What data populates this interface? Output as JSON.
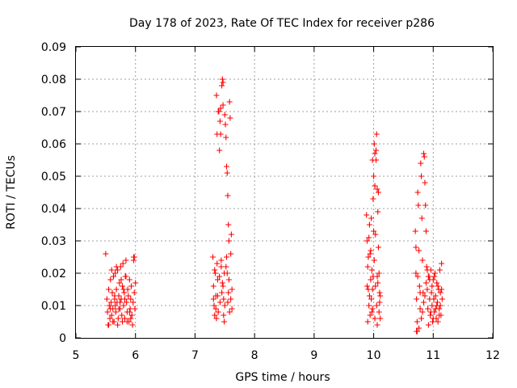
{
  "chart_data": {
    "type": "scatter",
    "title": "Day 178 of 2023, Rate Of TEC Index for receiver p286",
    "xlabel": "GPS time / hours",
    "ylabel": "ROTI / TECUs",
    "xlim": [
      5,
      12
    ],
    "ylim": [
      0,
      0.09
    ],
    "x_ticks": [
      "5",
      "6",
      "7",
      "8",
      "9",
      "10",
      "11",
      "12"
    ],
    "y_ticks": [
      "0",
      "0.01",
      "0.02",
      "0.03",
      "0.04",
      "0.05",
      "0.06",
      "0.07",
      "0.08",
      "0.09"
    ],
    "grid": true,
    "marker": "plus",
    "color": "#ff0000",
    "series": [
      {
        "name": "ROTI",
        "points": [
          [
            5.5,
            0.026
          ],
          [
            5.52,
            0.012
          ],
          [
            5.53,
            0.008
          ],
          [
            5.54,
            0.004
          ],
          [
            5.55,
            0.015
          ],
          [
            5.56,
            0.01
          ],
          [
            5.57,
            0.006
          ],
          [
            5.58,
            0.018
          ],
          [
            5.59,
            0.011
          ],
          [
            5.6,
            0.007
          ],
          [
            5.61,
            0.014
          ],
          [
            5.62,
            0.009
          ],
          [
            5.63,
            0.019
          ],
          [
            5.64,
            0.005
          ],
          [
            5.65,
            0.012
          ],
          [
            5.66,
            0.02
          ],
          [
            5.67,
            0.008
          ],
          [
            5.68,
            0.015
          ],
          [
            5.69,
            0.011
          ],
          [
            5.7,
            0.021
          ],
          [
            5.71,
            0.006
          ],
          [
            5.72,
            0.013
          ],
          [
            5.73,
            0.017
          ],
          [
            5.74,
            0.009
          ],
          [
            5.75,
            0.022
          ],
          [
            5.76,
            0.012
          ],
          [
            5.77,
            0.007
          ],
          [
            5.78,
            0.016
          ],
          [
            5.79,
            0.023
          ],
          [
            5.8,
            0.01
          ],
          [
            5.81,
            0.014
          ],
          [
            5.82,
            0.006
          ],
          [
            5.83,
            0.019
          ],
          [
            5.84,
            0.024
          ],
          [
            5.85,
            0.011
          ],
          [
            5.86,
            0.008
          ],
          [
            5.87,
            0.015
          ],
          [
            5.88,
            0.013
          ],
          [
            5.89,
            0.005
          ],
          [
            5.9,
            0.018
          ],
          [
            5.91,
            0.009
          ],
          [
            5.92,
            0.012
          ],
          [
            5.93,
            0.016
          ],
          [
            5.94,
            0.007
          ],
          [
            5.95,
            0.004
          ],
          [
            5.96,
            0.011
          ],
          [
            5.97,
            0.025
          ],
          [
            5.98,
            0.014
          ],
          [
            5.99,
            0.009
          ],
          [
            6.0,
            0.017
          ],
          [
            5.55,
            0.004
          ],
          [
            5.58,
            0.009
          ],
          [
            5.62,
            0.005
          ],
          [
            5.66,
            0.01
          ],
          [
            5.7,
            0.004
          ],
          [
            5.74,
            0.011
          ],
          [
            5.78,
            0.005
          ],
          [
            5.82,
            0.012
          ],
          [
            5.86,
            0.005
          ],
          [
            5.9,
            0.008
          ],
          [
            5.6,
            0.021
          ],
          [
            5.68,
            0.022
          ],
          [
            5.76,
            0.018
          ],
          [
            5.84,
            0.019
          ],
          [
            5.92,
            0.006
          ],
          [
            5.97,
            0.024
          ],
          [
            5.98,
            0.025
          ],
          [
            5.65,
            0.013
          ],
          [
            5.72,
            0.009
          ],
          [
            5.8,
            0.015
          ],
          [
            7.3,
            0.025
          ],
          [
            7.31,
            0.016
          ],
          [
            7.32,
            0.01
          ],
          [
            7.33,
            0.007
          ],
          [
            7.34,
            0.02
          ],
          [
            7.35,
            0.013
          ],
          [
            7.36,
            0.075
          ],
          [
            7.37,
            0.063
          ],
          [
            7.38,
            0.018
          ],
          [
            7.39,
            0.008
          ],
          [
            7.4,
            0.07
          ],
          [
            7.41,
            0.058
          ],
          [
            7.42,
            0.067
          ],
          [
            7.43,
            0.063
          ],
          [
            7.44,
            0.022
          ],
          [
            7.45,
            0.078
          ],
          [
            7.46,
            0.08
          ],
          [
            7.47,
            0.079
          ],
          [
            7.48,
            0.012
          ],
          [
            7.49,
            0.005
          ],
          [
            7.5,
            0.069
          ],
          [
            7.51,
            0.066
          ],
          [
            7.52,
            0.062
          ],
          [
            7.53,
            0.053
          ],
          [
            7.54,
            0.051
          ],
          [
            7.55,
            0.044
          ],
          [
            7.56,
            0.035
          ],
          [
            7.57,
            0.03
          ],
          [
            7.58,
            0.073
          ],
          [
            7.59,
            0.068
          ],
          [
            7.6,
            0.026
          ],
          [
            7.61,
            0.032
          ],
          [
            7.62,
            0.015
          ],
          [
            7.35,
            0.009
          ],
          [
            7.38,
            0.013
          ],
          [
            7.42,
            0.011
          ],
          [
            7.46,
            0.017
          ],
          [
            7.5,
            0.01
          ],
          [
            7.54,
            0.02
          ],
          [
            7.58,
            0.008
          ],
          [
            7.33,
            0.021
          ],
          [
            7.37,
            0.023
          ],
          [
            7.41,
            0.019
          ],
          [
            7.44,
            0.024
          ],
          [
            7.47,
            0.016
          ],
          [
            7.52,
            0.022
          ],
          [
            7.56,
            0.014
          ],
          [
            7.6,
            0.012
          ],
          [
            7.36,
            0.006
          ],
          [
            7.48,
            0.007
          ],
          [
            7.43,
            0.071
          ],
          [
            7.47,
            0.072
          ],
          [
            7.39,
            0.07
          ],
          [
            7.62,
            0.009
          ],
          [
            7.53,
            0.025
          ],
          [
            7.57,
            0.018
          ],
          [
            7.49,
            0.02
          ],
          [
            7.45,
            0.014
          ],
          [
            7.31,
            0.012
          ],
          [
            7.55,
            0.011
          ],
          [
            9.88,
            0.038
          ],
          [
            9.89,
            0.03
          ],
          [
            9.9,
            0.022
          ],
          [
            9.91,
            0.015
          ],
          [
            9.92,
            0.01
          ],
          [
            9.93,
            0.035
          ],
          [
            9.94,
            0.026
          ],
          [
            9.95,
            0.018
          ],
          [
            9.96,
            0.012
          ],
          [
            9.97,
            0.008
          ],
          [
            9.98,
            0.055
          ],
          [
            9.99,
            0.043
          ],
          [
            10.0,
            0.05
          ],
          [
            10.01,
            0.06
          ],
          [
            10.02,
            0.047
          ],
          [
            10.03,
            0.032
          ],
          [
            10.04,
            0.058
          ],
          [
            10.05,
            0.063
          ],
          [
            10.06,
            0.046
          ],
          [
            10.07,
            0.039
          ],
          [
            10.08,
            0.028
          ],
          [
            10.09,
            0.02
          ],
          [
            10.1,
            0.014
          ],
          [
            10.11,
            0.006
          ],
          [
            9.9,
            0.005
          ],
          [
            9.94,
            0.007
          ],
          [
            9.98,
            0.009
          ],
          [
            10.02,
            0.006
          ],
          [
            10.06,
            0.004
          ],
          [
            10.1,
            0.011
          ],
          [
            9.91,
            0.025
          ],
          [
            9.95,
            0.027
          ],
          [
            9.99,
            0.019
          ],
          [
            10.03,
            0.016
          ],
          [
            10.07,
            0.017
          ],
          [
            9.93,
            0.013
          ],
          [
            9.97,
            0.021
          ],
          [
            10.01,
            0.024
          ],
          [
            10.05,
            0.01
          ],
          [
            10.09,
            0.008
          ],
          [
            9.96,
            0.037
          ],
          [
            10.0,
            0.033
          ],
          [
            10.04,
            0.055
          ],
          [
            10.08,
            0.045
          ],
          [
            9.92,
            0.031
          ],
          [
            10.02,
            0.057
          ],
          [
            9.89,
            0.016
          ],
          [
            10.11,
            0.013
          ],
          [
            10.06,
            0.019
          ],
          [
            9.98,
            0.015
          ],
          [
            10.7,
            0.033
          ],
          [
            10.71,
            0.02
          ],
          [
            10.72,
            0.012
          ],
          [
            10.73,
            0.005
          ],
          [
            10.74,
            0.045
          ],
          [
            10.75,
            0.041
          ],
          [
            10.76,
            0.027
          ],
          [
            10.77,
            0.016
          ],
          [
            10.78,
            0.009
          ],
          [
            10.79,
            0.054
          ],
          [
            10.8,
            0.05
          ],
          [
            10.81,
            0.037
          ],
          [
            10.82,
            0.024
          ],
          [
            10.83,
            0.014
          ],
          [
            10.84,
            0.057
          ],
          [
            10.85,
            0.056
          ],
          [
            10.86,
            0.048
          ],
          [
            10.87,
            0.041
          ],
          [
            10.88,
            0.033
          ],
          [
            10.89,
            0.022
          ],
          [
            10.9,
            0.015
          ],
          [
            10.91,
            0.009
          ],
          [
            10.92,
            0.004
          ],
          [
            10.93,
            0.019
          ],
          [
            10.94,
            0.012
          ],
          [
            10.95,
            0.007
          ],
          [
            10.96,
            0.021
          ],
          [
            10.97,
            0.014
          ],
          [
            10.98,
            0.01
          ],
          [
            10.99,
            0.005
          ],
          [
            11.0,
            0.018
          ],
          [
            11.01,
            0.012
          ],
          [
            11.02,
            0.008
          ],
          [
            11.03,
            0.02
          ],
          [
            11.04,
            0.013
          ],
          [
            11.05,
            0.006
          ],
          [
            11.06,
            0.017
          ],
          [
            11.07,
            0.011
          ],
          [
            11.08,
            0.005
          ],
          [
            11.09,
            0.015
          ],
          [
            11.1,
            0.009
          ],
          [
            11.11,
            0.021
          ],
          [
            11.12,
            0.014
          ],
          [
            11.13,
            0.007
          ],
          [
            11.14,
            0.023
          ],
          [
            11.15,
            0.012
          ],
          [
            10.72,
            0.002
          ],
          [
            10.73,
            0.002
          ],
          [
            10.76,
            0.003
          ],
          [
            10.8,
            0.006
          ],
          [
            10.84,
            0.011
          ],
          [
            10.88,
            0.017
          ],
          [
            10.92,
            0.019
          ],
          [
            10.96,
            0.008
          ],
          [
            11.0,
            0.006
          ],
          [
            11.04,
            0.009
          ],
          [
            11.08,
            0.016
          ],
          [
            11.12,
            0.01
          ],
          [
            10.74,
            0.019
          ],
          [
            10.78,
            0.014
          ],
          [
            10.82,
            0.008
          ],
          [
            10.86,
            0.013
          ],
          [
            10.9,
            0.021
          ],
          [
            10.94,
            0.018
          ],
          [
            10.98,
            0.016
          ],
          [
            11.02,
            0.019
          ],
          [
            11.06,
            0.01
          ],
          [
            11.1,
            0.007
          ],
          [
            11.14,
            0.015
          ],
          [
            10.71,
            0.028
          ]
        ]
      }
    ]
  }
}
